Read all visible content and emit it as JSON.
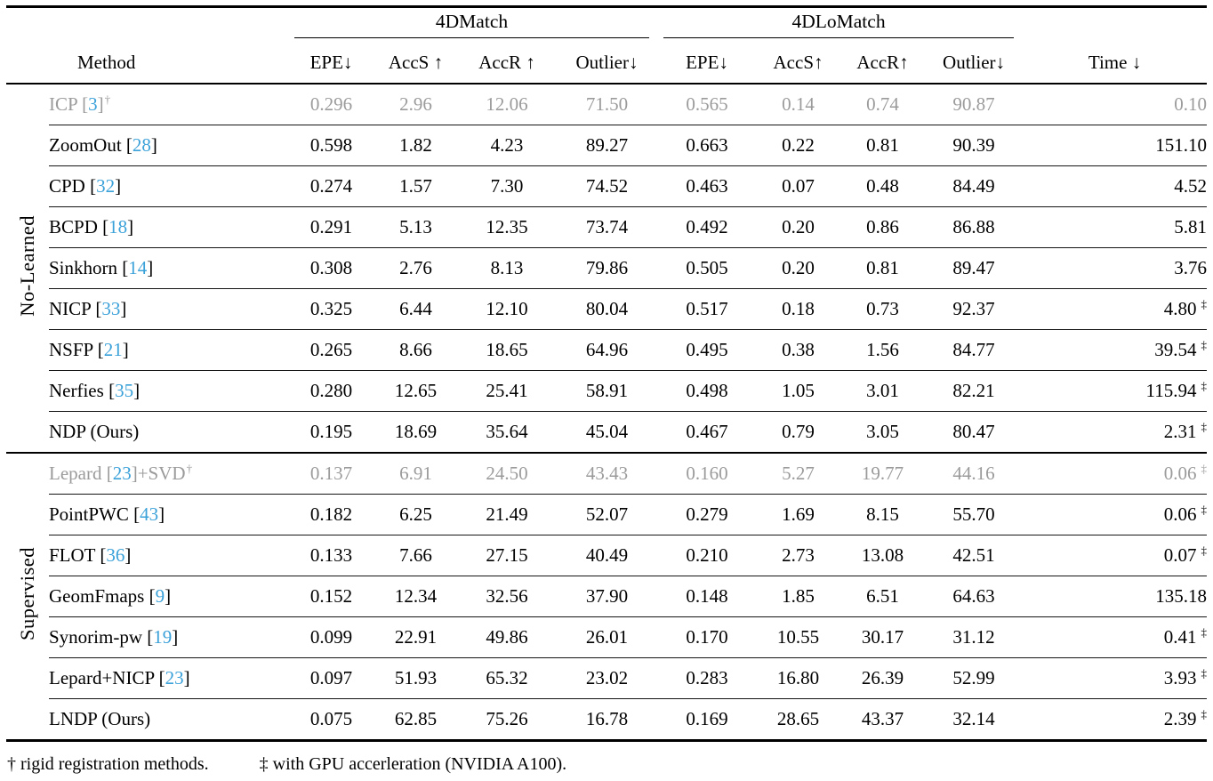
{
  "colors": {
    "citation": "#3ba1d9",
    "muted_text": "#9b9b9b",
    "text": "#000000",
    "background": "#ffffff"
  },
  "header": {
    "groups": [
      {
        "label": "4DMatch",
        "span": 4
      },
      {
        "label": "4DLoMatch",
        "span": 4
      }
    ],
    "columns": [
      "Method",
      "EPE↓",
      "AccS ↑",
      "AccR ↑",
      "Outlier↓",
      "EPE↓",
      "AccS↑",
      "AccR↑",
      "Outlier↓",
      "Time ↓"
    ]
  },
  "sections": [
    {
      "label": "No-Learned",
      "rows": [
        {
          "method": {
            "pre": "ICP ",
            "cite": "3",
            "post": "",
            "dagger": true
          },
          "muted": true,
          "values": [
            "0.296",
            "2.96",
            "12.06",
            "71.50",
            "0.565",
            "0.14",
            "0.74",
            "90.87"
          ],
          "bold": [],
          "time": "0.10",
          "time_ddagger": false
        },
        {
          "method": {
            "pre": "ZoomOut ",
            "cite": "28",
            "post": "",
            "dagger": false
          },
          "muted": false,
          "values": [
            "0.598",
            "1.82",
            "4.23",
            "89.27",
            "0.663",
            "0.22",
            "0.81",
            "90.39"
          ],
          "bold": [],
          "time": "151.10",
          "time_ddagger": false
        },
        {
          "method": {
            "pre": "CPD ",
            "cite": "32",
            "post": "",
            "dagger": false
          },
          "muted": false,
          "values": [
            "0.274",
            "1.57",
            "7.30",
            "74.52",
            "0.463",
            "0.07",
            "0.48",
            "84.49"
          ],
          "bold": [
            4
          ],
          "time": "4.52",
          "time_ddagger": false
        },
        {
          "method": {
            "pre": "BCPD ",
            "cite": "18",
            "post": "",
            "dagger": false
          },
          "muted": false,
          "values": [
            "0.291",
            "5.13",
            "12.35",
            "73.74",
            "0.492",
            "0.20",
            "0.86",
            "86.88"
          ],
          "bold": [],
          "time": "5.81",
          "time_ddagger": false
        },
        {
          "method": {
            "pre": "Sinkhorn ",
            "cite": "14",
            "post": "",
            "dagger": false
          },
          "muted": false,
          "values": [
            "0.308",
            "2.76",
            "8.13",
            "79.86",
            "0.505",
            "0.20",
            "0.81",
            "89.47"
          ],
          "bold": [],
          "time": "3.76",
          "time_ddagger": false
        },
        {
          "method": {
            "pre": "NICP ",
            "cite": "33",
            "post": "",
            "dagger": false
          },
          "muted": false,
          "values": [
            "0.325",
            "6.44",
            "12.10",
            "80.04",
            "0.517",
            "0.18",
            "0.73",
            "92.37"
          ],
          "bold": [],
          "time": "4.80",
          "time_ddagger": true
        },
        {
          "method": {
            "pre": "NSFP ",
            "cite": "21",
            "post": "",
            "dagger": false
          },
          "muted": false,
          "values": [
            "0.265",
            "8.66",
            "18.65",
            "64.96",
            "0.495",
            "0.38",
            "1.56",
            "84.77"
          ],
          "bold": [],
          "time": "39.54",
          "time_ddagger": true
        },
        {
          "method": {
            "pre": "Nerfies ",
            "cite": "35",
            "post": "",
            "dagger": false
          },
          "muted": false,
          "values": [
            "0.280",
            "12.65",
            "25.41",
            "58.91",
            "0.498",
            "1.05",
            "3.01",
            "82.21"
          ],
          "bold": [
            5
          ],
          "time": "115.94",
          "time_ddagger": true
        },
        {
          "method": {
            "pre": "NDP (Ours)",
            "cite": null,
            "post": "",
            "dagger": false
          },
          "muted": false,
          "values": [
            "0.195",
            "18.69",
            "35.64",
            "45.04",
            "0.467",
            "0.79",
            "3.05",
            "80.47"
          ],
          "bold": [
            0,
            1,
            2,
            3,
            4,
            6,
            7
          ],
          "time": "2.31",
          "time_ddagger": true
        }
      ]
    },
    {
      "label": "Supervised",
      "rows": [
        {
          "method": {
            "pre": "Lepard ",
            "cite": "23",
            "post": "+SVD",
            "dagger": true
          },
          "muted": true,
          "values": [
            "0.137",
            "6.91",
            "24.50",
            "43.43",
            "0.160",
            "5.27",
            "19.77",
            "44.16"
          ],
          "bold": [],
          "time": "0.06",
          "time_ddagger": true
        },
        {
          "method": {
            "pre": "PointPWC ",
            "cite": "43",
            "post": "",
            "dagger": false
          },
          "muted": false,
          "values": [
            "0.182",
            "6.25",
            "21.49",
            "52.07",
            "0.279",
            "1.69",
            "8.15",
            "55.70"
          ],
          "bold": [],
          "time": "0.06",
          "time_ddagger": true
        },
        {
          "method": {
            "pre": "FLOT ",
            "cite": "36",
            "post": "",
            "dagger": false
          },
          "muted": false,
          "values": [
            "0.133",
            "7.66",
            "27.15",
            "40.49",
            "0.210",
            "2.73",
            "13.08",
            "42.51"
          ],
          "bold": [],
          "time": "0.07",
          "time_ddagger": true
        },
        {
          "method": {
            "pre": "GeomFmaps ",
            "cite": "9",
            "post": "",
            "dagger": false
          },
          "muted": false,
          "values": [
            "0.152",
            "12.34",
            "32.56",
            "37.90",
            "0.148",
            "1.85",
            "6.51",
            "64.63"
          ],
          "bold": [],
          "time": "135.18",
          "time_ddagger": false
        },
        {
          "method": {
            "pre": "Synorim-pw ",
            "cite": "19",
            "post": "",
            "dagger": false
          },
          "muted": false,
          "values": [
            "0.099",
            "22.91",
            "49.86",
            "26.01",
            "0.170",
            "10.55",
            "30.17",
            "31.12"
          ],
          "bold": [
            7
          ],
          "time": "0.41",
          "time_ddagger": true
        },
        {
          "method": {
            "pre": "Lepard+NICP ",
            "cite": "23",
            "post": "",
            "dagger": false
          },
          "muted": false,
          "values": [
            "0.097",
            "51.93",
            "65.32",
            "23.02",
            "0.283",
            "16.80",
            "26.39",
            "52.99"
          ],
          "bold": [],
          "time": "3.93",
          "time_ddagger": true
        },
        {
          "method": {
            "pre": "LNDP (Ours)",
            "cite": null,
            "post": "",
            "dagger": false
          },
          "muted": false,
          "values": [
            "0.075",
            "62.85",
            "75.26",
            "16.78",
            "0.169",
            "28.65",
            "43.37",
            "32.14"
          ],
          "bold": [
            0,
            1,
            2,
            3,
            4,
            5,
            6
          ],
          "time": "2.39",
          "time_ddagger": true
        }
      ]
    }
  ],
  "footnotes": {
    "dagger": "† rigid registration methods.",
    "ddagger": "‡ with GPU accerleration (NVIDIA A100)."
  }
}
